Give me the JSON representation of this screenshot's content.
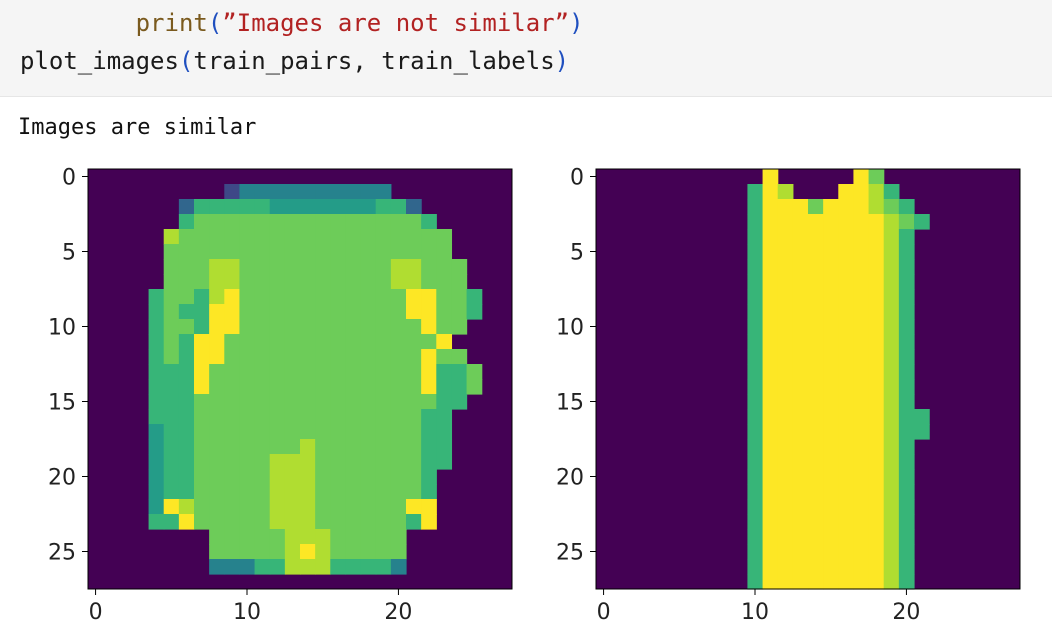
{
  "code_cell": {
    "line1": {
      "indent": "        ",
      "fn": "print",
      "open": "(",
      "string": "”Images are not similar”",
      "close": ")"
    },
    "line2": {
      "fn": "plot_images",
      "open": "(",
      "args": "train_pairs, train_labels",
      "close": ")"
    }
  },
  "output": {
    "text": "Images are similar"
  },
  "colors": {
    "code_background": "#f5f5f5",
    "colormap": "viridis"
  },
  "chart_data": [
    {
      "type": "heatmap",
      "xlim": [
        -0.5,
        27.5
      ],
      "ylim": [
        27.5,
        -0.5
      ],
      "xticks": [
        0,
        10,
        20
      ],
      "yticks": [
        0,
        5,
        10,
        15,
        20,
        25
      ],
      "xtick_labels": [
        "0",
        "10",
        "20"
      ],
      "ytick_labels": [
        "0",
        "5",
        "10",
        "15",
        "20",
        "25"
      ],
      "grid": false,
      "colormap": "viridis",
      "value_range": [
        0,
        1
      ],
      "rows": [
        "............................",
        ".........24444444444........",
        "......3666665555555663......",
        "......67777777777777776.....",
        ".....8777777777777777777....",
        ".....7777777777777777777....",
        ".....77788777777777788777...",
        ".....77788777777777788777...",
        "....6776897777777777799776..",
        "....6766997777777777799776..",
        "....677699777777777777977...",
        "....67699777777777777779...",
        "....676997777777777777977...",
        "....6669777777777777779667..",
        "....6669777777777777779667..",
        "....666777777777777777766...",
        "....66677777777777777766....",
        "....56677777777777777766....",
        "....56677777778777777766....",
        "....56677777888777777766....",
        "....5667777788877777776.....",
        "....5667777788877777776.....",
        "....5987777788877777799.....",
        "....6697777788877777769.....",
        "........7777788877777.......",
        "........7777789877777.......",
        "........4446688866664.......",
        "........................"
      ],
      "legend_map": "0-9 intensity digits, '.' = 0"
    },
    {
      "type": "heatmap",
      "xlim": [
        -0.5,
        27.5
      ],
      "ylim": [
        27.5,
        -0.5
      ],
      "xticks": [
        0,
        10,
        20
      ],
      "yticks": [
        0,
        5,
        10,
        15,
        20,
        25
      ],
      "xtick_labels": [
        "0",
        "10",
        "20"
      ],
      "ytick_labels": [
        "0",
        "5",
        "10",
        "15",
        "20",
        "25"
      ],
      "grid": false,
      "colormap": "viridis",
      "value_range": [
        0,
        1
      ],
      "rows": [
        "...........9.....97.........",
        "..........698...9986........",
        "..........69997999876.......",
        "..........699999999876......",
        "..........69999999986.......",
        "..........69999999986.......",
        "..........69999999986.......",
        "..........69999999986.......",
        "..........69999999986.......",
        "..........69999999986.......",
        "..........69999999986.......",
        "..........69999999986.......",
        "..........69999999986.......",
        "..........69999999986.......",
        "..........69999999986.......",
        "..........69999999986.......",
        "..........699999999866......",
        "..........699999999866......",
        "..........69999999986.......",
        "..........69999999986.......",
        "..........69999999986.......",
        "..........69999999986.......",
        "..........69999999986.......",
        "..........69999999986.......",
        "..........69999999986.......",
        "..........69999999986.......",
        "..........69999999986.......",
        "..........69999999986......."
      ],
      "legend_map": "0-9 intensity digits, '.' = 0"
    }
  ]
}
